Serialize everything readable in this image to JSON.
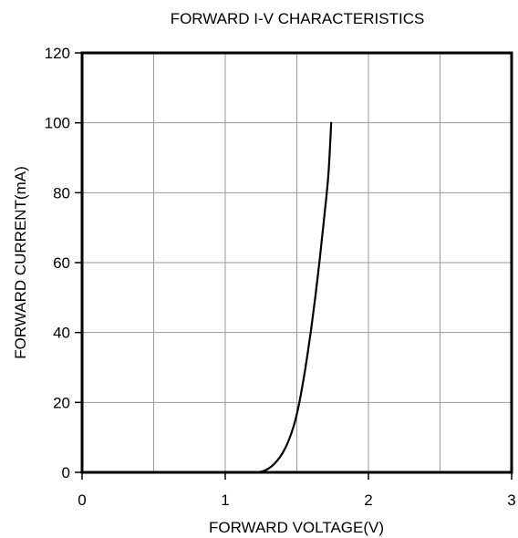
{
  "chart_data": {
    "type": "line",
    "title": "FORWARD I-V CHARACTERISTICS",
    "xlabel": "FORWARD VOLTAGE(V)",
    "ylabel": "FORWARD CURRENT(mA)",
    "xlim": [
      0,
      3
    ],
    "ylim": [
      0,
      120
    ],
    "xticks": [
      0,
      1,
      2,
      3
    ],
    "xtick_labels": [
      "0",
      "1",
      "2",
      "3"
    ],
    "xgrid": [
      0,
      0.5,
      1,
      1.5,
      2,
      2.5,
      3
    ],
    "yticks": [
      0,
      20,
      40,
      60,
      80,
      100,
      120
    ],
    "ytick_labels": [
      "0",
      "20",
      "40",
      "60",
      "80",
      "100",
      "120"
    ],
    "grid": true,
    "series": [
      {
        "x": [
          0,
          1.0,
          1.2,
          1.25,
          1.28,
          1.32,
          1.36,
          1.4,
          1.44,
          1.48,
          1.51,
          1.54,
          1.57,
          1.6,
          1.63,
          1.66,
          1.69,
          1.72,
          1.74
        ],
        "y": [
          0,
          0,
          0,
          0.2,
          0.6,
          1.6,
          3.2,
          5.5,
          8.8,
          13.5,
          18.5,
          25,
          32.5,
          41,
          50.5,
          61,
          72.5,
          85,
          100
        ],
        "color": "#000000"
      }
    ]
  }
}
